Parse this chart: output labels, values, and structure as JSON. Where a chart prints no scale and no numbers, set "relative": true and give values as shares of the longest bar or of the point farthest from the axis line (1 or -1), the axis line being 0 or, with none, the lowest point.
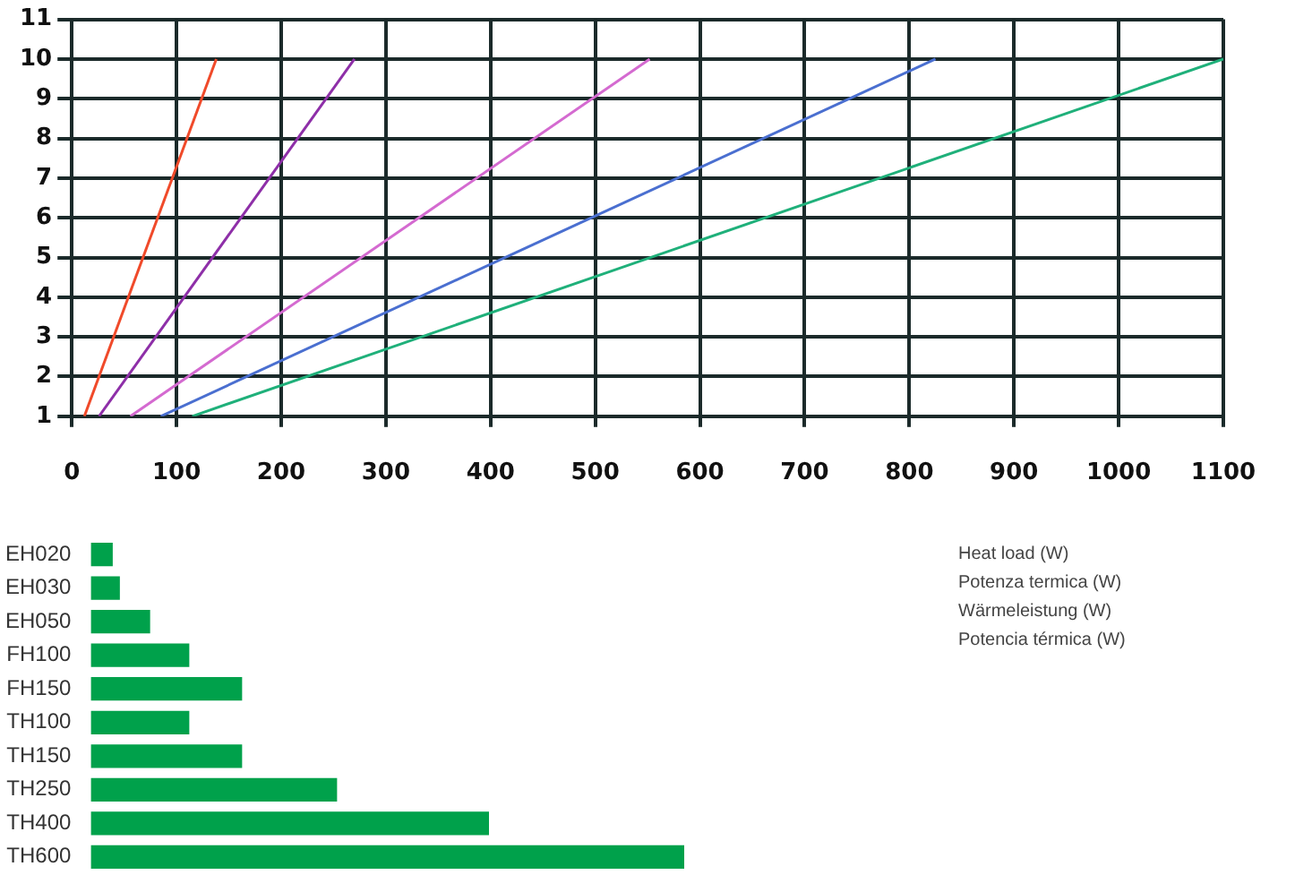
{
  "chart_data": [
    {
      "type": "line",
      "xlabel": "Heat load (W)\nPotenza termica (W)\nWärmeleistung (W)\nPotencia térmica (W)",
      "xlim": [
        0,
        1100
      ],
      "xticks": [
        0,
        100,
        200,
        300,
        400,
        500,
        600,
        700,
        800,
        900,
        1000,
        1100
      ],
      "ylim": [
        1,
        11
      ],
      "yticks": [
        1,
        2,
        3,
        4,
        5,
        6,
        7,
        8,
        9,
        10,
        11
      ],
      "grid": true,
      "legend": false,
      "marker": "none",
      "series": [
        {
          "color": "#f04a2a",
          "x": [
            12,
            138
          ],
          "values": [
            1,
            10
          ]
        },
        {
          "color": "#8e2fa8",
          "x": [
            26,
            270
          ],
          "values": [
            1,
            10
          ]
        },
        {
          "color": "#d46ad0",
          "x": [
            56,
            552
          ],
          "values": [
            1,
            10
          ]
        },
        {
          "color": "#4a6fd0",
          "x": [
            85,
            825
          ],
          "values": [
            1,
            10
          ]
        },
        {
          "color": "#1fb07a",
          "x": [
            115,
            1100
          ],
          "values": [
            1,
            10
          ]
        }
      ]
    },
    {
      "type": "bar",
      "orientation": "horizontal",
      "relative": true,
      "legend": false,
      "grid": false,
      "categories": [
        "EH020",
        "EH030",
        "EH050",
        "FH100",
        "FH150",
        "TH100",
        "TH150",
        "TH250",
        "TH400",
        "TH600"
      ],
      "color": "#00a14b",
      "values": [
        0.037,
        0.049,
        0.1,
        0.166,
        0.255,
        0.166,
        0.255,
        0.415,
        0.671,
        1
      ]
    }
  ]
}
